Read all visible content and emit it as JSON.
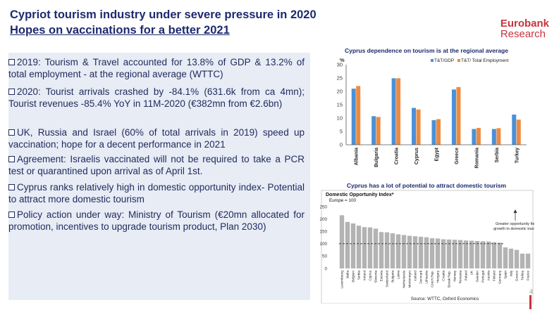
{
  "header": {
    "title_line1": "Cypriot tourism industry under severe pressure in 2020",
    "title_line2": "Hopes on vaccinations for a better 2021",
    "brand_line1": "Eurobank",
    "brand_line2": "Research"
  },
  "bullets": [
    "2019: Tourism & Travel accounted for 13.8% of GDP & 13.2% of total employment - at the regional average (WTTC)",
    "2020: Tourist arrivals crashed by -84.1% (631.6k from ca 4mn); Tourist revenues -85.4% YoY in 11M-2020 (€382mn from €2.6bn)",
    "UK, Russia and Israel (60% of total arrivals in 2019) speed up vaccination; hope for a decent performance in 2021",
    "Agreement: Israelis vaccinated will not be required to take a PCR test or quarantined upon arrival as of April 1st.",
    "Cyprus ranks relatively high in domestic opportunity index- Potential to attract more domestic tourism",
    "Policy action under way: Ministry of Tourism (€20mn allocated for promotion, incentives to upgrade tourism product, Plan 2030)"
  ],
  "page_number": "4",
  "chart_data": [
    {
      "type": "bar",
      "title": "Cyprus dependence on tourism is at the regional average",
      "ylabel": "%",
      "ylim": [
        0,
        30
      ],
      "yticks": [
        "0",
        "5",
        "10",
        "15",
        "20",
        "25",
        "30"
      ],
      "categories": [
        "Albania",
        "Bulgaria",
        "Croatia",
        "Cyprus",
        "Egypt",
        "Greece",
        "Romania",
        "Serbia",
        "Turkey"
      ],
      "series": [
        {
          "name": "T&T/GDP",
          "color": "#4a90d9",
          "values": [
            21.0,
            10.7,
            24.9,
            13.8,
            9.2,
            20.7,
            5.9,
            5.9,
            11.3
          ]
        },
        {
          "name": "T&T/ Total Employment",
          "color": "#ed8a3f",
          "values": [
            22.0,
            10.4,
            24.9,
            13.2,
            9.6,
            21.6,
            6.3,
            6.2,
            9.4
          ]
        }
      ],
      "legend": "top-right"
    },
    {
      "type": "bar",
      "title": "Cyprus has a lot of potential to attract domestic tourism",
      "subtitle": "Domestic Opportunity Index*",
      "note": "Europe = 100",
      "annotation": "Greater opportunity for growth in domestic travel",
      "source": "Source: WTTC, Oxford Economics",
      "ylim": [
        0,
        250
      ],
      "yticks": [
        "0",
        "50",
        "100",
        "150",
        "200",
        "250"
      ],
      "reference_line": 100,
      "bar_color": "#b3b3b3",
      "categories": [
        "Luxembourg",
        "Malta",
        "Belgium",
        "Serbia",
        "Ireland",
        "Cyprus",
        "Slovenia",
        "Estonia",
        "Switzerland",
        "Bulgaria",
        "Latvia",
        "Netherlands",
        "Montenegro",
        "Iceland",
        "Denmark",
        "Lithuania",
        "Czech Rep.",
        "Hungary",
        "Croatia",
        "Slovak Rep.",
        "Norway",
        "Romania",
        "Poland",
        "UK",
        "Sweden",
        "Portugal",
        "Austria",
        "Finland",
        "Germany",
        "Spain",
        "Italy",
        "Greece",
        "Turkey",
        "France"
      ],
      "values": [
        215,
        188,
        182,
        173,
        167,
        166,
        161,
        147,
        146,
        142,
        138,
        135,
        132,
        130,
        128,
        126,
        122,
        121,
        118,
        117,
        116,
        115,
        113,
        112,
        111,
        110,
        109,
        106,
        104,
        85,
        80,
        75,
        60,
        60
      ]
    }
  ]
}
